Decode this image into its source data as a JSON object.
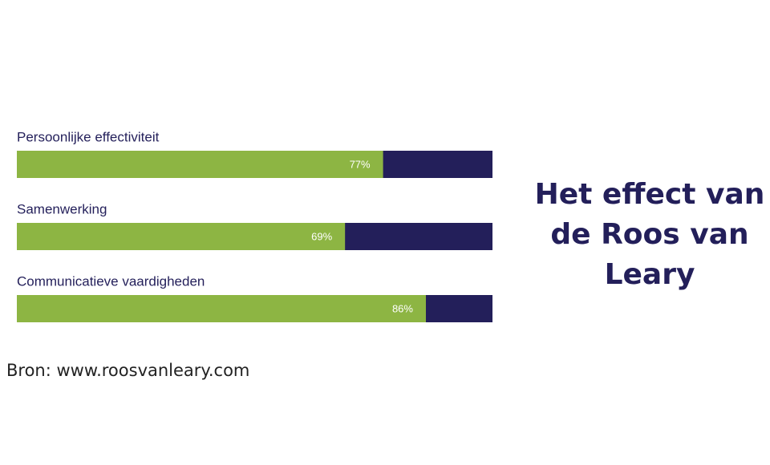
{
  "chart_data": {
    "type": "progress-bar",
    "title": "Het effect van de Roos van Leary",
    "categories": [
      "Persoonlijke effectiviteit",
      "Samenwerking",
      "Communicatieve vaardigheden"
    ],
    "values": [
      77,
      69,
      86
    ],
    "value_labels": [
      "77%",
      "69%",
      "86%"
    ],
    "color": "#8db543",
    "track_color": "#231f5a",
    "xlim": [
      0,
      100
    ],
    "source": "Bron: www.roosvanleary.com"
  }
}
